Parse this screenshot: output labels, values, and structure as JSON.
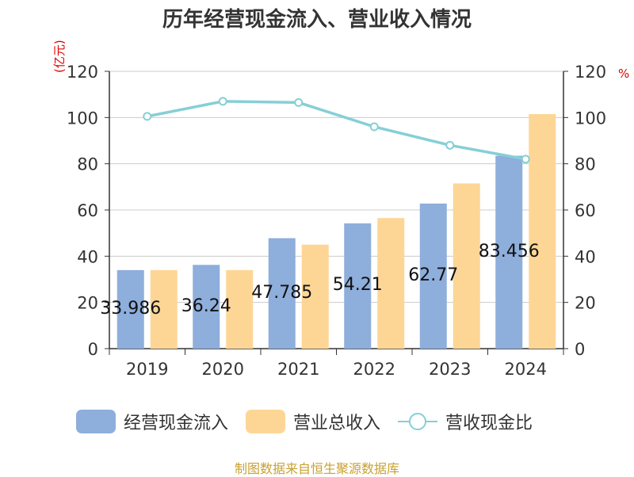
{
  "title": "历年经营现金流入、营业收入情况",
  "y_left_unit": "(亿元)",
  "y_right_unit": "%",
  "source": "制图数据来自恒生聚源数据库",
  "colors": {
    "inflow": "#8eaedc",
    "revenue": "#fdd696",
    "ratio": "#86cfd6",
    "axis": "#333333",
    "grid": "#cccccc"
  },
  "chart_data": {
    "type": "bar",
    "categories": [
      "2019",
      "2020",
      "2021",
      "2022",
      "2023",
      "2024"
    ],
    "series": [
      {
        "name": "经营现金流入",
        "type": "bar",
        "axis": "left",
        "values": [
          33.986,
          36.24,
          47.785,
          54.21,
          62.77,
          83.456
        ],
        "labels": [
          "33.986",
          "36.24",
          "47.785",
          "54.21",
          "62.77",
          "83.456"
        ]
      },
      {
        "name": "营业总收入",
        "type": "bar",
        "axis": "left",
        "values": [
          34.0,
          34.0,
          45.0,
          56.5,
          71.5,
          101.5
        ]
      },
      {
        "name": "营收现金比",
        "type": "line",
        "axis": "right",
        "values": [
          100.5,
          107.0,
          106.5,
          96.0,
          88.0,
          82.0
        ]
      }
    ],
    "y_left": {
      "min": 0,
      "max": 120,
      "ticks": [
        0,
        20,
        40,
        60,
        80,
        100,
        120
      ]
    },
    "y_right": {
      "min": 0,
      "max": 120,
      "ticks": [
        0,
        20,
        40,
        60,
        80,
        100,
        120
      ]
    },
    "grid": true,
    "legend_position": "bottom"
  }
}
